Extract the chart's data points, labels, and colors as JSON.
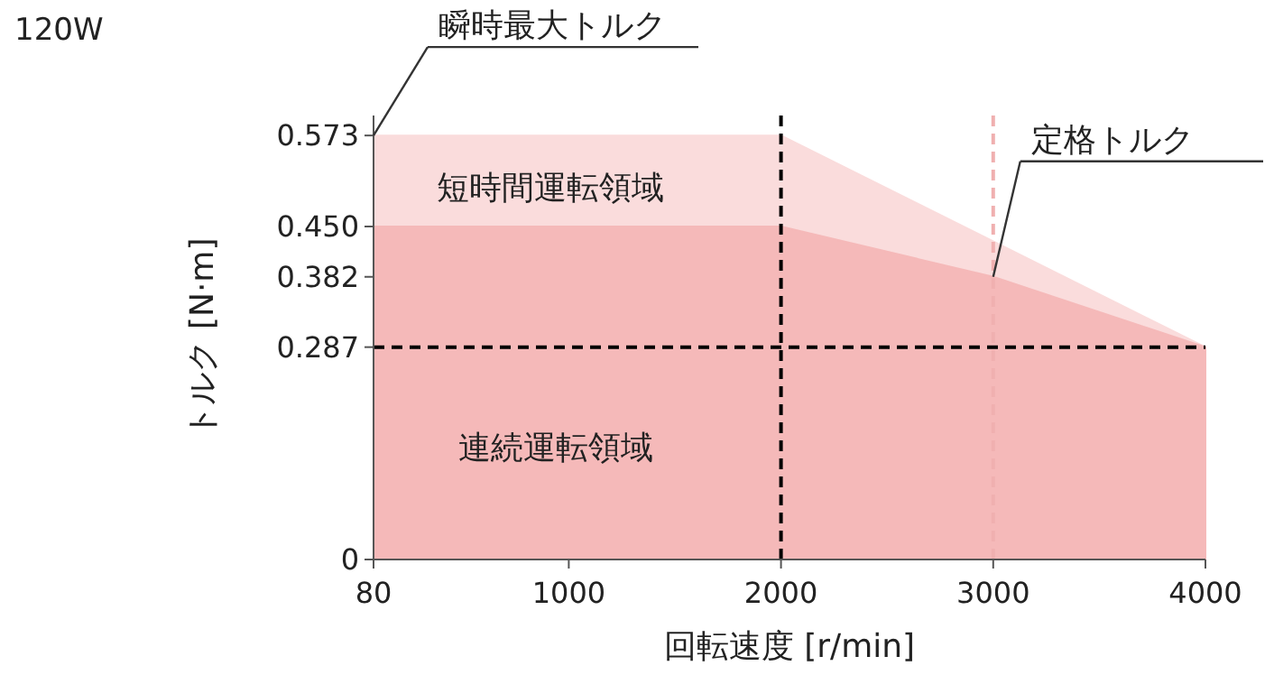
{
  "chart_data": {
    "type": "area",
    "title": "120W",
    "xlabel": "回転速度 [r/min]",
    "ylabel": "トルク [N·m]",
    "xlim": [
      80,
      4000
    ],
    "xticks": [
      80,
      1000,
      2000,
      3000,
      4000
    ],
    "ylim": [
      0,
      0.6
    ],
    "yticks": [
      0,
      0.287,
      0.382,
      {
        "value": 0.45,
        "label": "0.450"
      },
      0.573
    ],
    "series": [
      {
        "color": "#fadcdc",
        "x": [
          80,
          2000,
          4000
        ],
        "values": [
          0.573,
          0.573,
          0.287
        ]
      },
      {
        "color": "#f5b9b9",
        "x": [
          80,
          2000,
          3000,
          4000
        ],
        "values": [
          0.45,
          0.45,
          0.382,
          0.287
        ]
      }
    ],
    "ref_lines": [
      {
        "axis": "y",
        "value": 0.287,
        "color": "#000000",
        "line_style": "dashed"
      },
      {
        "axis": "x",
        "value": 2000,
        "color": "#000000",
        "line_style": "dashed"
      },
      {
        "axis": "x",
        "value": 3000,
        "color": "#f0b0b0",
        "line_style": "dashed"
      }
    ],
    "annotations": [
      {
        "text": "瞬時最大トルク",
        "x": 80,
        "y": 0.573
      },
      {
        "text": "定格トルク",
        "x": 3000,
        "y": 0.382
      },
      "短時間運転領域",
      "連続運転領域"
    ],
    "grid": false
  }
}
